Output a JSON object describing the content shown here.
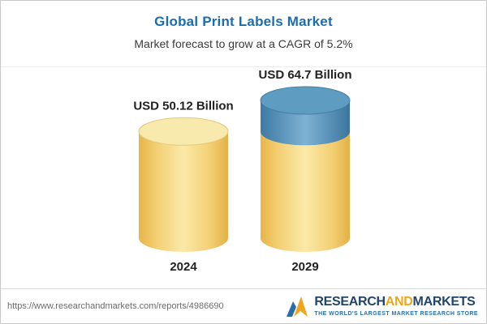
{
  "header": {
    "title": "Global Print Labels Market",
    "subtitle": "Market forecast to grow at a CAGR of 5.2%"
  },
  "chart_data": {
    "type": "bar",
    "variant": "3d-cylinder",
    "categories": [
      "2024",
      "2029"
    ],
    "values": [
      50.12,
      64.7
    ],
    "value_labels": [
      "USD 50.12 Billion",
      "USD 64.7 Billion"
    ],
    "unit": "USD Billion",
    "title": "Global Print Labels Market",
    "subtitle": "Market forecast to grow at a CAGR of 5.2%",
    "cagr": "5.2%",
    "legend": "none",
    "grid": false,
    "colors": {
      "base_segment": "#f5d77f",
      "growth_segment": "#4e87ae"
    },
    "note": "2029 cylinder shows blue growth segment above the 2024 base level"
  },
  "footer": {
    "url": "https://www.researchandmarkets.com/reports/4986690",
    "logo": {
      "part1": "RESEARCH",
      "part2": "AND",
      "part3": "MARKETS",
      "tagline": "THE WORLD'S LARGEST MARKET RESEARCH STORE"
    }
  }
}
